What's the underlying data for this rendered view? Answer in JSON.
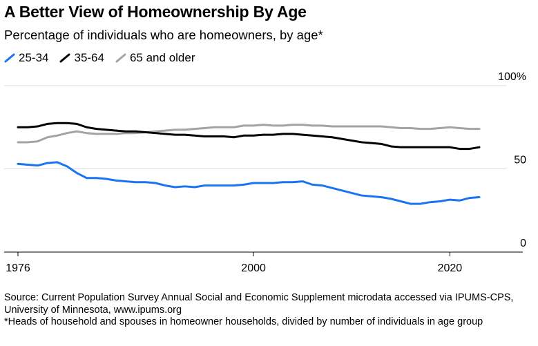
{
  "header": {
    "title": "A Better View of Homeownership By Age",
    "subtitle": "Percentage of individuals who are homeowners, by age*"
  },
  "footer": {
    "source": "Source: Current Population Survey Annual Social and Economic Supplement microdata accessed via IPUMS-CPS, University of Minnesota, www.ipums.org",
    "note": "*Heads of household and spouses in homeowner households, divided by number of individuals in age group"
  },
  "chart_data": {
    "type": "line",
    "title": "A Better View of Homeownership By Age",
    "subtitle": "Percentage of individuals who are homeowners, by age*",
    "xlabel": "",
    "ylabel": "",
    "xlim": [
      1976,
      2023
    ],
    "ylim": [
      0,
      100
    ],
    "x_ticks": [
      1976,
      2000,
      2020
    ],
    "x_tick_labels": [
      "1976",
      "2000",
      "2020"
    ],
    "y_ticks": [
      0,
      50,
      100
    ],
    "y_tick_labels": [
      "0",
      "50",
      "100%"
    ],
    "grid": true,
    "legend_position": "top-left",
    "x": [
      1976,
      1977,
      1978,
      1979,
      1980,
      1981,
      1982,
      1983,
      1984,
      1985,
      1986,
      1987,
      1988,
      1989,
      1990,
      1991,
      1992,
      1993,
      1994,
      1995,
      1996,
      1997,
      1998,
      1999,
      2000,
      2001,
      2002,
      2003,
      2004,
      2005,
      2006,
      2007,
      2008,
      2009,
      2010,
      2011,
      2012,
      2013,
      2014,
      2015,
      2016,
      2017,
      2018,
      2019,
      2020,
      2021,
      2022,
      2023
    ],
    "series": [
      {
        "name": "25-34",
        "color": "#1a74f2",
        "values": [
          53,
          52.5,
          52,
          53.5,
          54,
          51.5,
          47.5,
          44.5,
          44.5,
          44,
          43,
          42.5,
          42,
          42,
          41.5,
          40,
          39,
          39.5,
          39,
          40,
          40,
          40,
          40,
          40.5,
          41.5,
          41.5,
          41.5,
          42,
          42,
          42.5,
          40.5,
          40,
          38.5,
          37,
          35.5,
          34,
          33.5,
          33,
          32,
          30.5,
          29,
          29,
          30,
          30.5,
          31.5,
          31,
          32.5,
          33
        ]
      },
      {
        "name": "35-64",
        "color": "#000000",
        "values": [
          75,
          75,
          75.5,
          77,
          77.5,
          77.5,
          77,
          75,
          74,
          73.5,
          73,
          72.5,
          72.5,
          72,
          71.5,
          71,
          70.5,
          70.5,
          70,
          69.5,
          69.5,
          69.5,
          69,
          70,
          70,
          70.5,
          70.5,
          71,
          71,
          70.5,
          70,
          69.5,
          69,
          68,
          67,
          66,
          65.5,
          65,
          63.5,
          63,
          63,
          63,
          63,
          63,
          63,
          62,
          62,
          63
        ]
      },
      {
        "name": "65 and older",
        "color": "#a3a3a3",
        "values": [
          66,
          66,
          66.5,
          69,
          70,
          71.5,
          72.5,
          71.5,
          71,
          71,
          71,
          71.5,
          71.5,
          72,
          72.5,
          73,
          73.5,
          73.5,
          74,
          74.5,
          75,
          75,
          75,
          76,
          76,
          76.5,
          76,
          76,
          76.5,
          76.5,
          76,
          76,
          75.5,
          75.5,
          75.5,
          75.5,
          75.5,
          75.5,
          75,
          74.5,
          74.5,
          74,
          74,
          74.5,
          75,
          74.5,
          74,
          74
        ]
      }
    ]
  }
}
